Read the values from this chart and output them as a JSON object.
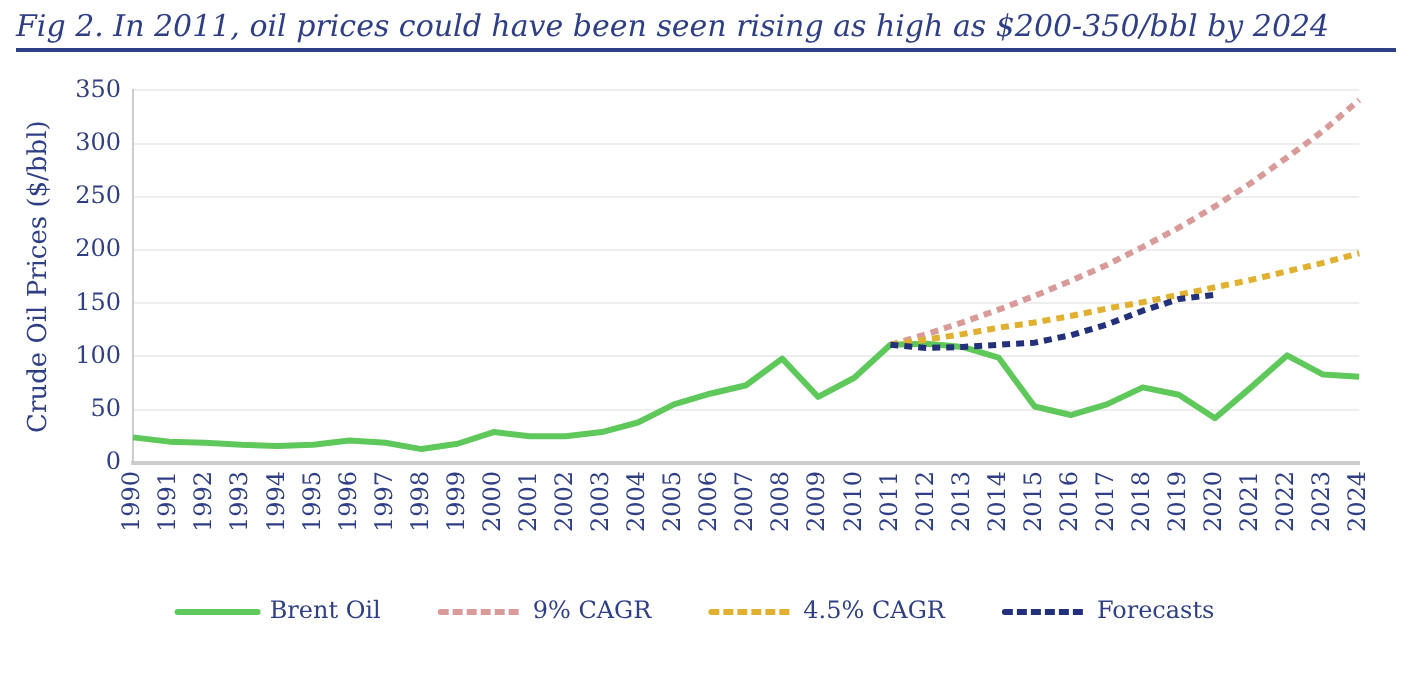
{
  "chart_data": {
    "type": "line",
    "title": "Fig 2. In 2011, oil prices could have been seen rising as high as $200-350/bbl by 2024",
    "ylabel": "Crude Oil Prices ($/bbl)",
    "categories": [
      "1990",
      "1991",
      "1992",
      "1993",
      "1994",
      "1995",
      "1996",
      "1997",
      "1998",
      "1999",
      "2000",
      "2001",
      "2002",
      "2003",
      "2004",
      "2005",
      "2006",
      "2007",
      "2008",
      "2009",
      "2010",
      "2011",
      "2012",
      "2013",
      "2014",
      "2015",
      "2016",
      "2017",
      "2018",
      "2019",
      "2020",
      "2021",
      "2022",
      "2023",
      "2024"
    ],
    "series": [
      {
        "name": "Brent Oil",
        "color": "#5ec85a",
        "line_style": "solid",
        "values": [
          24,
          20,
          19,
          17,
          16,
          17,
          21,
          19,
          13,
          18,
          29,
          25,
          25,
          29,
          38,
          55,
          65,
          73,
          98,
          62,
          80,
          111,
          112,
          109,
          99,
          53,
          45,
          55,
          71,
          64,
          42,
          71,
          101,
          83,
          81
        ]
      },
      {
        "name": "9% CAGR",
        "color": "#d99a9a",
        "line_style": "dashed",
        "values": [
          null,
          null,
          null,
          null,
          null,
          null,
          null,
          null,
          null,
          null,
          null,
          null,
          null,
          null,
          null,
          null,
          null,
          null,
          null,
          null,
          null,
          111,
          121,
          132,
          144,
          157,
          171,
          186,
          203,
          221,
          241,
          263,
          287,
          312,
          341
        ]
      },
      {
        "name": "4.5% CAGR",
        "color": "#e0b030",
        "line_style": "dashed",
        "values": [
          null,
          null,
          null,
          null,
          null,
          null,
          null,
          null,
          null,
          null,
          null,
          null,
          null,
          null,
          null,
          null,
          null,
          null,
          null,
          null,
          null,
          111,
          116,
          121,
          127,
          132,
          138,
          145,
          151,
          158,
          165,
          172,
          180,
          188,
          197
        ]
      },
      {
        "name": "Forecasts",
        "color": "#23307a",
        "line_style": "dashed",
        "values": [
          null,
          null,
          null,
          null,
          null,
          null,
          null,
          null,
          null,
          null,
          null,
          null,
          null,
          null,
          null,
          null,
          null,
          null,
          null,
          null,
          null,
          111,
          108,
          109,
          111,
          113,
          120,
          130,
          143,
          154,
          158,
          null,
          null,
          null,
          null
        ]
      }
    ],
    "ylim": [
      0,
      350
    ],
    "yticks": [
      0,
      50,
      100,
      150,
      200,
      250,
      300,
      350
    ],
    "grid": "y",
    "legend": "bottom",
    "marker": "none"
  }
}
